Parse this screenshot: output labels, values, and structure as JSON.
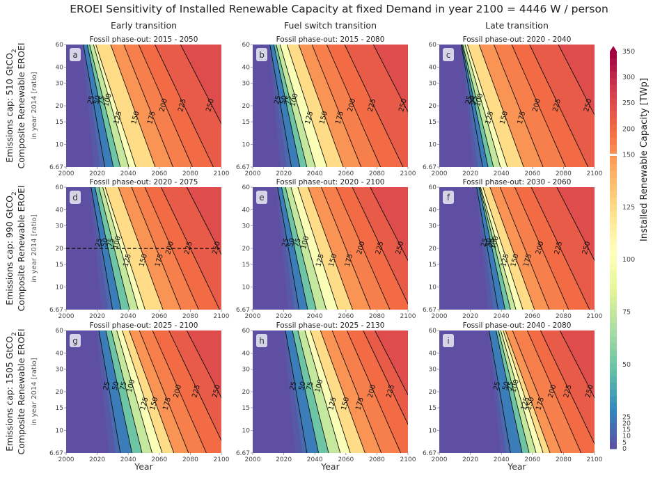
{
  "figure": {
    "title": "EROEI Sensitivity of Installed Renewable Capacity at fixed Demand in year 2100 = 4446 W / person",
    "column_titles": [
      "Early transition",
      "Fuel switch transition",
      "Late transition"
    ],
    "row_labels": [
      {
        "cap": "Emissions cap: 510 GtCO",
        "line2": "Composite Renewable EROEI",
        "line3": "in year 2014 [ratio]"
      },
      {
        "cap": "Emissions cap: 990 GtCO",
        "line2": "Composite Renewable EROEI",
        "line3": "in year 2014 [ratio]"
      },
      {
        "cap": "Emissions cap: 1505 GtCO",
        "line2": "Composite Renewable EROEI",
        "line3": "in year 2014 [ratio]"
      }
    ],
    "subscript": "2",
    "xlabel": "Year",
    "colorbar_label": "Installed Renewable Capacity [TWp]"
  },
  "chart_data": {
    "type": "heatmap",
    "subtype": "filled-contour",
    "x_ticks": [
      2000,
      2020,
      2040,
      2060,
      2080,
      2100
    ],
    "y_ticks": [
      6.67,
      10,
      15,
      20,
      30,
      40,
      60
    ],
    "y_tick_labels": [
      "6.67",
      "10",
      "15",
      "20",
      "30",
      "40",
      "60"
    ],
    "x_tick_labels": [
      "2000",
      "2020",
      "2040",
      "2060",
      "2080",
      "2100"
    ],
    "xlim": [
      2000,
      2100
    ],
    "ylim": [
      6.67,
      60
    ],
    "y_scale": "log",
    "colorbar": {
      "lower_ticks": [
        "0",
        "5",
        "10",
        "15",
        "20",
        "25",
        "50",
        "75",
        "100",
        "125",
        "150"
      ],
      "upper_ticks": [
        "150",
        "200",
        "250",
        "300",
        "350"
      ],
      "colormap": "Spectral_r",
      "extend": "max"
    },
    "panels": [
      {
        "id": "a",
        "subtitle": "Fossil phase-out: 2015 - 2050",
        "t0": 2012,
        "t25": 2018,
        "slope": 4.5,
        "levels": [
          {
            "label": "25",
            "v": 25,
            "x": 2018
          },
          {
            "label": "50",
            "v": 50,
            "x": 2022
          },
          {
            "label": "75",
            "v": 75,
            "x": 2025
          },
          {
            "label": "100",
            "v": 100,
            "x": 2029
          },
          {
            "label": "125",
            "v": 125,
            "x": 2032
          },
          {
            "label": "150",
            "v": 150,
            "x": 2043
          },
          {
            "label": "175",
            "v": 175,
            "x": 2053
          },
          {
            "label": "200",
            "v": 200,
            "x": 2064
          },
          {
            "label": "225",
            "v": 225,
            "x": 2076
          },
          {
            "label": "250",
            "v": 250,
            "x": 2094
          }
        ]
      },
      {
        "id": "b",
        "subtitle": "Fossil phase-out: 2015 - 2080",
        "t0": 2012,
        "t25": 2018,
        "slope": 4.5,
        "levels": [
          {
            "label": "25",
            "v": 25,
            "x": 2018
          },
          {
            "label": "50",
            "v": 50,
            "x": 2022
          },
          {
            "label": "75",
            "v": 75,
            "x": 2025
          },
          {
            "label": "100",
            "v": 100,
            "x": 2029
          },
          {
            "label": "125",
            "v": 125,
            "x": 2035
          },
          {
            "label": "150",
            "v": 150,
            "x": 2044
          },
          {
            "label": "175",
            "v": 175,
            "x": 2054
          },
          {
            "label": "200",
            "v": 200,
            "x": 2065
          },
          {
            "label": "225",
            "v": 225,
            "x": 2078
          },
          {
            "label": "250",
            "v": 250,
            "x": 2098
          }
        ]
      },
      {
        "id": "c",
        "subtitle": "Fossil phase-out: 2020 - 2040",
        "t0": 2017,
        "t25": 2021,
        "slope": 4.5,
        "levels": [
          {
            "label": "25",
            "v": 25,
            "x": 2021
          },
          {
            "label": "50",
            "v": 50,
            "x": 2023
          },
          {
            "label": "75",
            "v": 75,
            "x": 2025
          },
          {
            "label": "100",
            "v": 100,
            "x": 2028
          },
          {
            "label": "125",
            "v": 125,
            "x": 2031
          },
          {
            "label": "150",
            "v": 150,
            "x": 2040
          },
          {
            "label": "175",
            "v": 175,
            "x": 2051
          },
          {
            "label": "200",
            "v": 200,
            "x": 2064
          },
          {
            "label": "225",
            "v": 225,
            "x": 2077
          },
          {
            "label": "250",
            "v": 250,
            "x": 2097
          }
        ]
      },
      {
        "id": "d",
        "subtitle": "Fossil phase-out: 2020 - 2075",
        "t0": 2017,
        "t25": 2023,
        "slope": 4.5,
        "hline": 20,
        "levels": [
          {
            "label": "25",
            "v": 25,
            "x": 2023
          },
          {
            "label": "50",
            "v": 50,
            "x": 2027
          },
          {
            "label": "75",
            "v": 75,
            "x": 2031
          },
          {
            "label": "100",
            "v": 100,
            "x": 2035
          },
          {
            "label": "125",
            "v": 125,
            "x": 2038
          },
          {
            "label": "150",
            "v": 150,
            "x": 2048
          },
          {
            "label": "175",
            "v": 175,
            "x": 2058
          },
          {
            "label": "200",
            "v": 200,
            "x": 2068
          },
          {
            "label": "225",
            "v": 225,
            "x": 2080
          },
          {
            "label": "250",
            "v": 250,
            "x": 2098
          }
        ]
      },
      {
        "id": "e",
        "subtitle": "Fossil phase-out: 2020 - 2100",
        "t0": 2017,
        "t25": 2023,
        "slope": 4.5,
        "levels": [
          {
            "label": "25",
            "v": 25,
            "x": 2023
          },
          {
            "label": "50",
            "v": 50,
            "x": 2027
          },
          {
            "label": "75",
            "v": 75,
            "x": 2031
          },
          {
            "label": "100",
            "v": 100,
            "x": 2036
          },
          {
            "label": "125",
            "v": 125,
            "x": 2042
          },
          {
            "label": "150",
            "v": 150,
            "x": 2050
          },
          {
            "label": "175",
            "v": 175,
            "x": 2060
          },
          {
            "label": "200",
            "v": 200,
            "x": 2071
          },
          {
            "label": "225",
            "v": 225,
            "x": 2083
          },
          {
            "label": "250",
            "v": 250,
            "x": 2096
          }
        ]
      },
      {
        "id": "f",
        "subtitle": "Fossil phase-out: 2030 - 2060",
        "t0": 2026,
        "t25": 2031,
        "slope": 4.5,
        "levels": [
          {
            "label": "25",
            "v": 25,
            "x": 2031
          },
          {
            "label": "50",
            "v": 50,
            "x": 2034
          },
          {
            "label": "75",
            "v": 75,
            "x": 2036
          },
          {
            "label": "100",
            "v": 100,
            "x": 2038
          },
          {
            "label": "125",
            "v": 125,
            "x": 2041
          },
          {
            "label": "150",
            "v": 150,
            "x": 2047
          },
          {
            "label": "175",
            "v": 175,
            "x": 2055
          },
          {
            "label": "200",
            "v": 200,
            "x": 2066
          },
          {
            "label": "225",
            "v": 225,
            "x": 2078
          },
          {
            "label": "250",
            "v": 250,
            "x": 2096
          }
        ]
      },
      {
        "id": "g",
        "subtitle": "Fossil phase-out: 2025 - 2100",
        "t0": 2021,
        "t25": 2028,
        "slope": 4.5,
        "levels": [
          {
            "label": "25",
            "v": 25,
            "x": 2028
          },
          {
            "label": "50",
            "v": 50,
            "x": 2034
          },
          {
            "label": "75",
            "v": 75,
            "x": 2039
          },
          {
            "label": "100",
            "v": 100,
            "x": 2044
          },
          {
            "label": "125",
            "v": 125,
            "x": 2049
          },
          {
            "label": "150",
            "v": 150,
            "x": 2055
          },
          {
            "label": "175",
            "v": 175,
            "x": 2063
          },
          {
            "label": "200",
            "v": 200,
            "x": 2073
          },
          {
            "label": "225",
            "v": 225,
            "x": 2085
          },
          {
            "label": "250",
            "v": 250,
            "x": 2098
          }
        ]
      },
      {
        "id": "h",
        "subtitle": "Fossil phase-out: 2025 - 2130",
        "t0": 2021,
        "t25": 2028,
        "slope": 4.5,
        "levels": [
          {
            "label": "25",
            "v": 25,
            "x": 2028
          },
          {
            "label": "50",
            "v": 50,
            "x": 2034
          },
          {
            "label": "75",
            "v": 75,
            "x": 2039
          },
          {
            "label": "100",
            "v": 100,
            "x": 2045
          },
          {
            "label": "125",
            "v": 125,
            "x": 2050
          },
          {
            "label": "150",
            "v": 150,
            "x": 2058
          },
          {
            "label": "175",
            "v": 175,
            "x": 2067
          },
          {
            "label": "200",
            "v": 200,
            "x": 2078
          },
          {
            "label": "225",
            "v": 225,
            "x": 2090
          },
          {
            "label": "250",
            "v": 250,
            "x": 2099
          }
        ]
      },
      {
        "id": "i",
        "subtitle": "Fossil phase-out: 2040 - 2080",
        "t0": 2034,
        "t25": 2039,
        "slope": 4.5,
        "levels": [
          {
            "label": "25",
            "v": 25,
            "x": 2039
          },
          {
            "label": "50",
            "v": 50,
            "x": 2045
          },
          {
            "label": "75",
            "v": 75,
            "x": 2048
          },
          {
            "label": "100",
            "v": 100,
            "x": 2051
          },
          {
            "label": "125",
            "v": 125,
            "x": 2054
          },
          {
            "label": "150",
            "v": 150,
            "x": 2057
          },
          {
            "label": "175",
            "v": 175,
            "x": 2063
          },
          {
            "label": "200",
            "v": 200,
            "x": 2074
          },
          {
            "label": "225",
            "v": 225,
            "x": 2084
          },
          {
            "label": "250",
            "v": 250,
            "x": 2098
          }
        ]
      }
    ]
  }
}
